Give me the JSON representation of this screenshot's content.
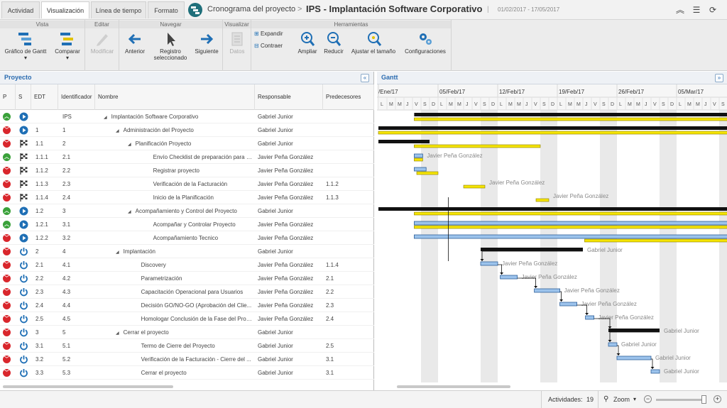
{
  "tabs": [
    {
      "label": "Actividad"
    },
    {
      "label": "Visualización"
    },
    {
      "label": "Línea de tiempo"
    },
    {
      "label": "Formato"
    }
  ],
  "header": {
    "crumb": "Cronograma del proyecto",
    "sep": ">",
    "title": "IPS - Implantación Software Corporativo",
    "pipe": "|",
    "dates": "01/02/2017 - 17/05/2017"
  },
  "ribbon": {
    "groups": [
      "Vista",
      "Editar",
      "Navegar",
      "Visualizar",
      "Herramientas"
    ],
    "buttons": {
      "gantt": "Gráfico de Gantt",
      "compare": "Comparar",
      "modify": "Modificar",
      "prev": "Anterior",
      "selected": "Registro seleccionado",
      "next": "Siguiente",
      "data": "Datos",
      "expand": "Expandir",
      "contract": "Contraer",
      "zoomin": "Ampliar",
      "zoomout": "Reducir",
      "fit": "Ajustar el tamaño",
      "config": "Configuraciones"
    }
  },
  "left": {
    "title": "Proyecto",
    "collapse": "«",
    "columns": [
      "P",
      "S",
      "EDT",
      "Identificador",
      "Nombre",
      "Responsable",
      "Predecesores"
    ]
  },
  "right": {
    "title": "Gantt",
    "expand": "»"
  },
  "rows": [
    {
      "p": "green",
      "s": "play",
      "edt": "",
      "id": "IPS",
      "level": 0,
      "tri": true,
      "name": "Implantación Software Corporativo",
      "resp": "Gabriel Junior",
      "pred": ""
    },
    {
      "p": "red",
      "s": "play",
      "edt": "1",
      "id": "1",
      "level": 1,
      "tri": true,
      "name": "Administración del Proyecto",
      "resp": "Gabriel Junior",
      "pred": ""
    },
    {
      "p": "red",
      "s": "flag",
      "edt": "1.1",
      "id": "2",
      "level": 2,
      "tri": true,
      "name": "Planificación Proyecto",
      "resp": "Gabriel Junior",
      "pred": ""
    },
    {
      "p": "green",
      "s": "flag",
      "edt": "1.1.1",
      "id": "2.1",
      "level": 3,
      "tri": false,
      "name": "Envío Checklist de preparación para i...",
      "resp": "Javier Peña González",
      "pred": ""
    },
    {
      "p": "red",
      "s": "flag",
      "edt": "1.1.2",
      "id": "2.2",
      "level": 3,
      "tri": false,
      "name": "Registrar proyecto",
      "resp": "Javier Peña González",
      "pred": ""
    },
    {
      "p": "red",
      "s": "flag",
      "edt": "1.1.3",
      "id": "2.3",
      "level": 3,
      "tri": false,
      "name": "Verificación de la Facturación",
      "resp": "Javier Peña González",
      "pred": "1.1.2"
    },
    {
      "p": "red",
      "s": "flag",
      "edt": "1.1.4",
      "id": "2.4",
      "level": 3,
      "tri": false,
      "name": "Inicio de la Planificación",
      "resp": "Javier Peña González",
      "pred": "1.1.3"
    },
    {
      "p": "green",
      "s": "play",
      "edt": "1.2",
      "id": "3",
      "level": 2,
      "tri": true,
      "name": "Acompañamiento y Control del Proyecto",
      "resp": "Gabriel Junior",
      "pred": ""
    },
    {
      "p": "green",
      "s": "play",
      "edt": "1.2.1",
      "id": "3.1",
      "level": 3,
      "tri": false,
      "name": "Acompañar y Controlar Proyecto",
      "resp": "Javier Peña González",
      "pred": ""
    },
    {
      "p": "red",
      "s": "play",
      "edt": "1.2.2",
      "id": "3.2",
      "level": 3,
      "tri": false,
      "name": "Acompañamiento Tecnico",
      "resp": "Javier Peña González",
      "pred": ""
    },
    {
      "p": "red",
      "s": "power",
      "edt": "2",
      "id": "4",
      "level": 1,
      "tri": true,
      "name": "Implantación",
      "resp": "Gabriel Junior",
      "pred": ""
    },
    {
      "p": "red",
      "s": "power",
      "edt": "2.1",
      "id": "4.1",
      "level": 2,
      "tri": false,
      "name": "Discovery",
      "resp": "Javier Peña González",
      "pred": "1.1.4"
    },
    {
      "p": "red",
      "s": "power",
      "edt": "2.2",
      "id": "4.2",
      "level": 2,
      "tri": false,
      "name": "Parametrización",
      "resp": "Javier Peña González",
      "pred": "2.1"
    },
    {
      "p": "red",
      "s": "power",
      "edt": "2.3",
      "id": "4.3",
      "level": 2,
      "tri": false,
      "name": "Capacitación Operacional para Usuarios",
      "resp": "Javier Peña González",
      "pred": "2.2"
    },
    {
      "p": "red",
      "s": "power",
      "edt": "2.4",
      "id": "4.4",
      "level": 2,
      "tri": false,
      "name": "Decisión GO/NO-GO (Aprobación del Clie...",
      "resp": "Javier Peña González",
      "pred": "2.3"
    },
    {
      "p": "red",
      "s": "power",
      "edt": "2.5",
      "id": "4.5",
      "level": 2,
      "tri": false,
      "name": "Homologar Conclusión de la Fase del Proy...",
      "resp": "Javier Peña González",
      "pred": "2.4"
    },
    {
      "p": "red",
      "s": "power",
      "edt": "3",
      "id": "5",
      "level": 1,
      "tri": true,
      "name": "Cerrar el proyecto",
      "resp": "Gabriel Junior",
      "pred": ""
    },
    {
      "p": "red",
      "s": "power",
      "edt": "3.1",
      "id": "5.1",
      "level": 2,
      "tri": false,
      "name": "Termo de Cierre del Proyecto",
      "resp": "Gabriel Junior",
      "pred": "2.5"
    },
    {
      "p": "red",
      "s": "power",
      "edt": "3.2",
      "id": "5.2",
      "level": 2,
      "tri": false,
      "name": "Verificación de la Facturación - Cierre del ...",
      "resp": "Gabriel Junior",
      "pred": "3.1"
    },
    {
      "p": "red",
      "s": "power",
      "edt": "3.3",
      "id": "5.3",
      "level": 2,
      "tri": false,
      "name": "Cerrar el proyecto",
      "resp": "Gabriel Junior",
      "pred": "3.1"
    }
  ],
  "gantt": {
    "weeks": [
      "/Ene/17",
      "05/Feb/17",
      "12/Feb/17",
      "19/Feb/17",
      "26/Feb/17",
      "05/Mar/17"
    ],
    "days": [
      "L",
      "M",
      "M",
      "J",
      "V",
      "S",
      "D"
    ],
    "bars": [
      {
        "type": "summary",
        "start": 4.2,
        "end": 99,
        "baseline": [
          4.2,
          99
        ]
      },
      {
        "type": "summary",
        "start": 0,
        "end": 99,
        "baseline": [
          0,
          99
        ]
      },
      {
        "type": "summary",
        "start": 0,
        "end": 6,
        "baseline": [
          4.2,
          19
        ]
      },
      {
        "type": "task",
        "start": 4.2,
        "end": 5.2,
        "baseline": [
          4.2,
          5.2
        ],
        "label": "Javier Peña González"
      },
      {
        "type": "task",
        "start": 4.2,
        "end": 5.6,
        "baseline": [
          4.5,
          7
        ]
      },
      {
        "type": "task",
        "start": -1,
        "end": -1,
        "baseline": [
          10,
          12.5
        ],
        "label": "Javier Peña González"
      },
      {
        "type": "task",
        "start": -1,
        "end": -1,
        "baseline": [
          18.5,
          20
        ],
        "label": "Javier Peña González"
      },
      {
        "type": "summary",
        "start": 0,
        "end": 99,
        "baseline": [
          4.2,
          99
        ]
      },
      {
        "type": "task",
        "start": 4.2,
        "end": 99,
        "baseline": [
          4.2,
          99
        ]
      },
      {
        "type": "task",
        "start": 4.2,
        "end": 99,
        "baseline": [
          24.2,
          99
        ]
      },
      {
        "type": "summary",
        "start": 12,
        "end": 24,
        "label": "Gabriel Junior"
      },
      {
        "type": "task",
        "start": 12,
        "end": 14,
        "label": "Javier Peña González"
      },
      {
        "type": "task",
        "start": 14.3,
        "end": 16.3,
        "label": "Javier Peña González"
      },
      {
        "type": "task",
        "start": 18.3,
        "end": 21.3,
        "label": "Javier Peña González"
      },
      {
        "type": "task",
        "start": 21.3,
        "end": 23.3,
        "label": "Javier Peña González"
      },
      {
        "type": "task",
        "start": 24.3,
        "end": 25.3,
        "label": "Javier Peña González"
      },
      {
        "type": "summary",
        "start": 27,
        "end": 33,
        "label": "Gabriel Junior"
      },
      {
        "type": "task",
        "start": 27,
        "end": 28,
        "label": "Gabriel Junior"
      },
      {
        "type": "task",
        "start": 28,
        "end": 32,
        "label": "Gabriel Junior"
      },
      {
        "type": "task",
        "start": 32,
        "end": 33,
        "label": "Gabriel Junior"
      }
    ]
  },
  "status": {
    "activities_label": "Actividades:",
    "activities_count": "19",
    "zoom": "Zoom"
  }
}
